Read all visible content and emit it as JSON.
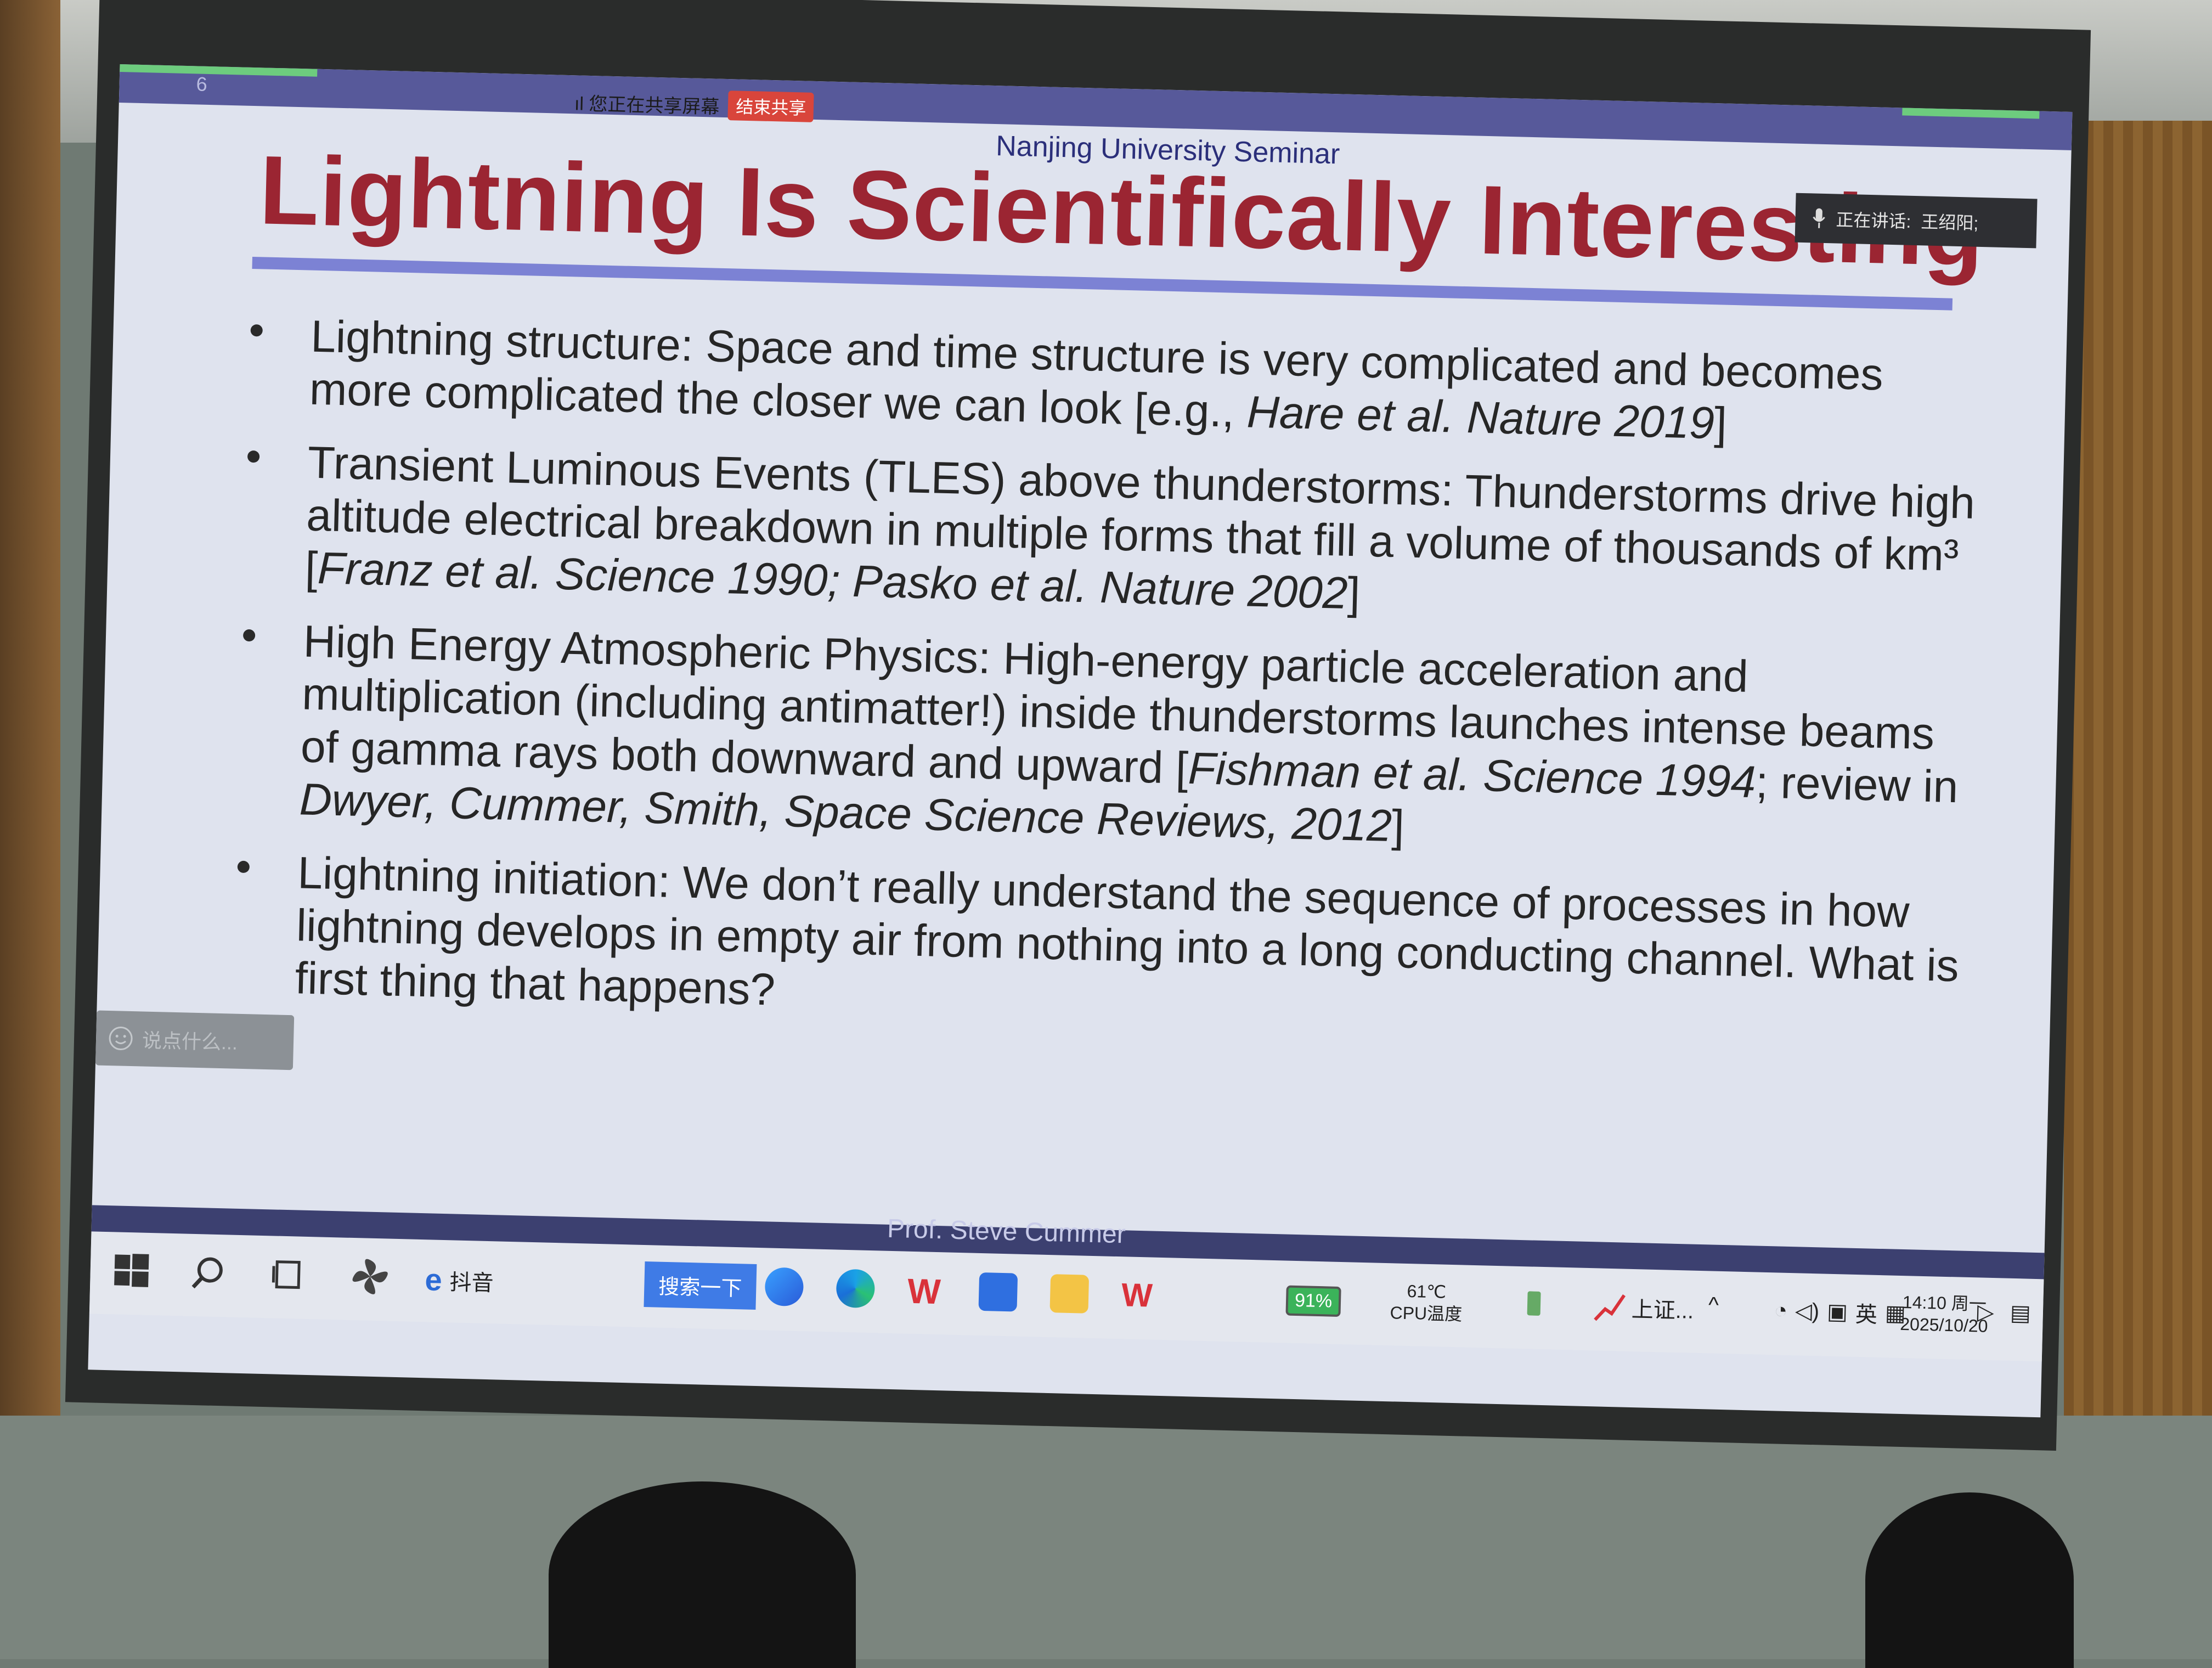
{
  "slide": {
    "number": "6",
    "share_banner": "ıl 您正在共享屏幕",
    "stop_share": "结束共享",
    "seminar": "Nanjing University Seminar",
    "title": "Lightning Is Scientifically Interesting",
    "speaking_label": "正在讲话:",
    "speaking_name": "王绍阳;",
    "comment_placeholder": "说点什么...",
    "footer_name": "Prof. Steve Cummer",
    "bullets": [
      {
        "text": "Lightning structure: Space and time structure is very complicated and becomes more complicated the closer we can look [e.g., ",
        "cite": "Hare et al. Nature 2019",
        "tail": "]"
      },
      {
        "text": "Transient Luminous Events (TLES) above thunderstorms: Thunderstorms drive high altitude electrical breakdown in multiple forms that fill a volume of thousands of km³ [",
        "cite": "Franz et al. Science 1990; Pasko et al. Nature 2002",
        "tail": "]"
      },
      {
        "text": "High Energy Atmospheric Physics: High-energy particle acceleration and multiplication (including antimatter!) inside thunderstorms launches intense beams of gamma rays both downward and upward [",
        "cite": "Fishman et al. Science 1994",
        "tail": "; review in ",
        "cite2": "Dwyer, Cummer, Smith, Space Science Reviews, 2012",
        "tail2": "]"
      },
      {
        "text": "Lightning initiation: We don’t really understand the sequence of processes in how lightning develops in empty air from nothing into a long conducting channel. What is first thing that happens?",
        "cite": "",
        "tail": ""
      }
    ]
  },
  "taskbar": {
    "douyin": "抖音",
    "search_button": "搜索一下",
    "battery": "91%",
    "cpu_temp": "61℃",
    "cpu_label": "CPU温度",
    "stock": "上证...",
    "lang": "英",
    "time": "14:10 周一",
    "date": "2025/10/20"
  },
  "colors": {
    "title": "#9b2532",
    "header_bar": "#57599a",
    "rule": "#7c82d4",
    "search_button": "#3f7be6"
  }
}
